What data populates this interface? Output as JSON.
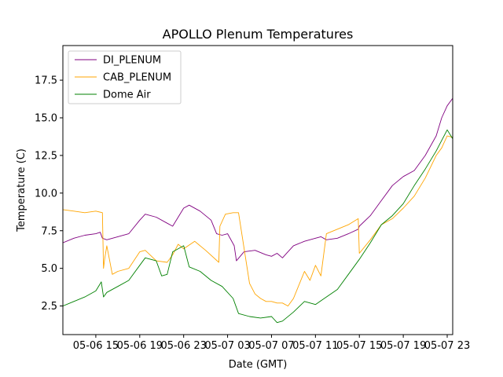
{
  "chart_data": {
    "type": "line",
    "title": "APOLLO Plenum Temperatures",
    "xlabel": "Date (GMT)",
    "ylabel": "Temperature (C)",
    "xlim": [
      12.0,
      47.5
    ],
    "ylim": [
      0.6,
      19.8
    ],
    "x_unit": "hours since 2019-05-06 00:00 GMT",
    "x_ticks": [
      {
        "value": 15,
        "label": "05-06 15"
      },
      {
        "value": 19,
        "label": "05-06 19"
      },
      {
        "value": 23,
        "label": "05-06 23"
      },
      {
        "value": 27,
        "label": "05-07 03"
      },
      {
        "value": 31,
        "label": "05-07 07"
      },
      {
        "value": 35,
        "label": "05-07 11"
      },
      {
        "value": 39,
        "label": "05-07 15"
      },
      {
        "value": 43,
        "label": "05-07 19"
      },
      {
        "value": 47,
        "label": "05-07 23"
      }
    ],
    "y_ticks": [
      {
        "value": 2.5,
        "label": "2.5"
      },
      {
        "value": 5.0,
        "label": "5.0"
      },
      {
        "value": 7.5,
        "label": "7.5"
      },
      {
        "value": 10.0,
        "label": "10.0"
      },
      {
        "value": 12.5,
        "label": "12.5"
      },
      {
        "value": 15.0,
        "label": "15.0"
      },
      {
        "value": 17.5,
        "label": "17.5"
      }
    ],
    "legend_position": "upper-left",
    "series": [
      {
        "name": "DI_PLENUM",
        "color": "#800080",
        "x": [
          12.0,
          13.0,
          14.0,
          15.0,
          15.4,
          15.6,
          16.0,
          17.0,
          18.0,
          19.0,
          19.5,
          20.5,
          21.5,
          22.0,
          23.0,
          23.5,
          24.5,
          25.5,
          26.0,
          26.5,
          27.0,
          27.6,
          27.8,
          28.5,
          29.5,
          30.5,
          31.0,
          31.5,
          32.0,
          32.5,
          33.0,
          34.0,
          35.0,
          35.5,
          36.0,
          37.0,
          38.0,
          38.9,
          39.0,
          40.0,
          41.0,
          42.0,
          43.0,
          44.0,
          45.0,
          46.0,
          46.5,
          47.0,
          47.5
        ],
        "values": [
          6.7,
          7.0,
          7.2,
          7.3,
          7.4,
          7.0,
          6.9,
          7.1,
          7.3,
          8.2,
          8.6,
          8.4,
          8.0,
          7.8,
          9.0,
          9.2,
          8.8,
          8.2,
          7.3,
          7.2,
          7.3,
          6.5,
          5.5,
          6.1,
          6.2,
          5.9,
          5.8,
          6.0,
          5.7,
          6.1,
          6.5,
          6.8,
          7.0,
          7.1,
          6.9,
          7.0,
          7.3,
          7.6,
          7.8,
          8.5,
          9.5,
          10.5,
          11.1,
          11.5,
          12.5,
          13.8,
          15.0,
          15.8,
          16.3
        ]
      },
      {
        "name": "CAB_PLENUM",
        "color": "#ffa500",
        "x": [
          12.0,
          13.0,
          14.0,
          15.0,
          15.6,
          15.7,
          15.8,
          16.0,
          16.5,
          17.0,
          18.0,
          19.0,
          19.5,
          20.5,
          21.5,
          22.0,
          22.5,
          23.0,
          24.0,
          25.0,
          26.2,
          26.3,
          26.8,
          27.5,
          28.0,
          29.0,
          29.5,
          30.0,
          30.5,
          31.0,
          31.5,
          32.0,
          32.5,
          33.0,
          34.0,
          34.5,
          35.0,
          35.5,
          36.0,
          37.0,
          38.0,
          38.9,
          39.0,
          40.0,
          41.0,
          42.0,
          43.0,
          44.0,
          45.0,
          46.0,
          46.5,
          47.0,
          47.5
        ],
        "values": [
          8.9,
          8.8,
          8.7,
          8.8,
          8.7,
          5.0,
          5.6,
          6.5,
          4.6,
          4.8,
          5.0,
          6.1,
          6.2,
          5.5,
          5.4,
          5.9,
          6.6,
          6.3,
          6.8,
          6.2,
          5.4,
          7.8,
          8.6,
          8.7,
          8.7,
          4.0,
          3.3,
          3.0,
          2.8,
          2.8,
          2.7,
          2.7,
          2.5,
          3.0,
          4.8,
          4.2,
          5.2,
          4.5,
          7.3,
          7.6,
          7.9,
          8.3,
          6.0,
          6.9,
          7.9,
          8.3,
          9.0,
          9.8,
          11.0,
          12.5,
          13.0,
          13.8,
          13.7
        ]
      },
      {
        "name": "Dome Air",
        "color": "#008000",
        "x": [
          12.0,
          13.0,
          14.0,
          15.0,
          15.5,
          15.7,
          16.0,
          17.0,
          18.0,
          19.0,
          19.5,
          20.5,
          21.0,
          21.5,
          22.0,
          23.0,
          23.5,
          24.5,
          25.5,
          26.5,
          27.5,
          28.0,
          29.0,
          30.0,
          31.0,
          31.5,
          32.0,
          33.0,
          34.0,
          35.0,
          36.0,
          37.0,
          38.0,
          39.0,
          40.0,
          41.0,
          42.0,
          43.0,
          44.0,
          45.0,
          46.0,
          47.0,
          47.5
        ],
        "values": [
          2.5,
          2.8,
          3.1,
          3.5,
          4.1,
          3.1,
          3.4,
          3.8,
          4.2,
          5.2,
          5.7,
          5.5,
          4.5,
          4.6,
          6.1,
          6.5,
          5.1,
          4.8,
          4.2,
          3.8,
          3.0,
          2.0,
          1.8,
          1.7,
          1.8,
          1.4,
          1.5,
          2.1,
          2.8,
          2.6,
          3.1,
          3.6,
          4.6,
          5.6,
          6.7,
          7.9,
          8.5,
          9.3,
          10.5,
          11.6,
          12.8,
          14.2,
          13.6
        ]
      }
    ]
  }
}
